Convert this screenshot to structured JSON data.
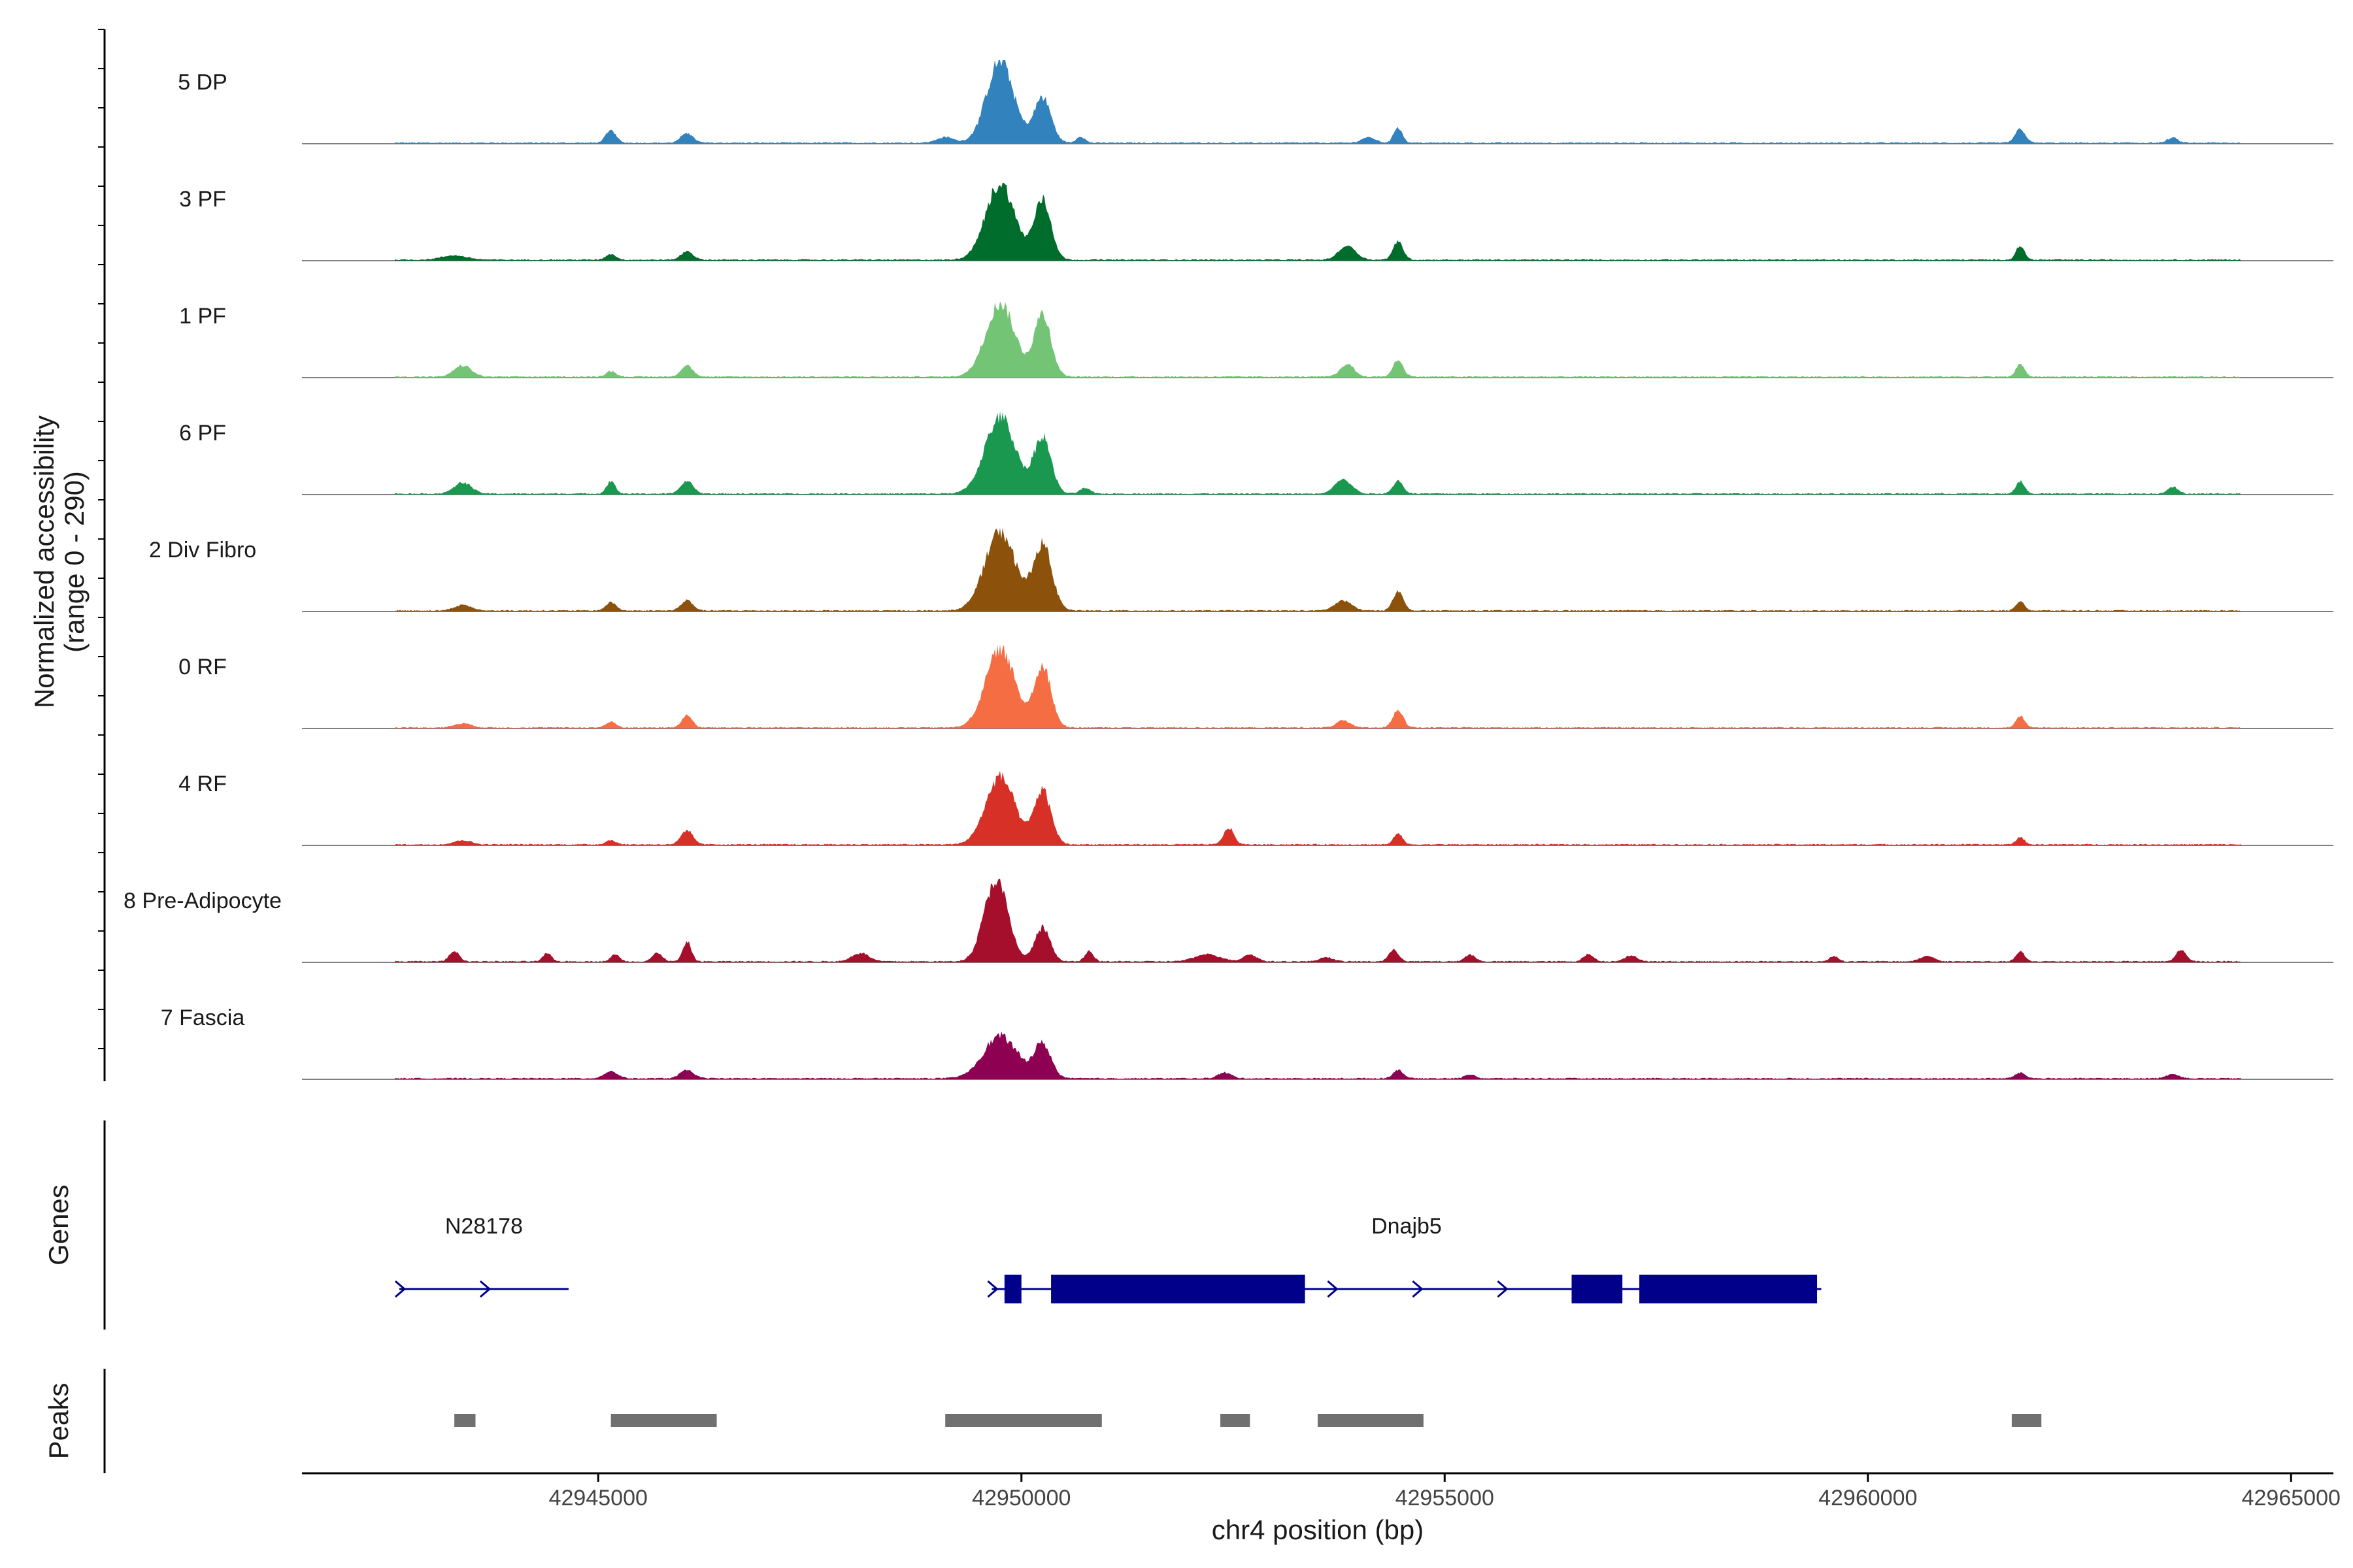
{
  "chart_data": {
    "type": "area",
    "title": "",
    "ylabel_line1": "Normalized accessibility",
    "ylabel_line2": "(range 0 - 290)",
    "y_range": [
      0,
      290
    ],
    "xlabel": "chr4 position (bp)",
    "xlim": [
      42941500,
      42965500
    ],
    "x_ticks": [
      42945000,
      42950000,
      42955000,
      42960000,
      42965000
    ],
    "x_tick_labels": [
      "42945000",
      "42950000",
      "42955000",
      "42960000",
      "42965000"
    ],
    "data_start": 42942600,
    "data_end": 42964400,
    "series": [
      {
        "name": "5 DP",
        "color": "#3182bd",
        "peaks": [
          [
            42949750,
            290,
            160
          ],
          [
            42950250,
            160,
            100
          ],
          [
            42945150,
            45,
            60
          ],
          [
            42946050,
            35,
            70
          ],
          [
            42949100,
            20,
            100
          ],
          [
            42954450,
            55,
            50
          ],
          [
            42954100,
            20,
            80
          ],
          [
            42961800,
            50,
            60
          ],
          [
            42963600,
            18,
            60
          ],
          [
            42950700,
            22,
            50
          ]
        ]
      },
      {
        "name": "3 PF",
        "color": "#006d2c",
        "peaks": [
          [
            42949750,
            270,
            170
          ],
          [
            42950250,
            210,
            100
          ],
          [
            42945150,
            20,
            60
          ],
          [
            42946050,
            30,
            70
          ],
          [
            42953850,
            50,
            100
          ],
          [
            42954450,
            65,
            60
          ],
          [
            42961800,
            50,
            50
          ],
          [
            42943300,
            15,
            150
          ]
        ]
      },
      {
        "name": "1 PF",
        "color": "#74c476",
        "peaks": [
          [
            42949750,
            260,
            170
          ],
          [
            42950250,
            220,
            100
          ],
          [
            42943400,
            40,
            100
          ],
          [
            42946050,
            40,
            70
          ],
          [
            42945150,
            20,
            60
          ],
          [
            42953850,
            45,
            80
          ],
          [
            42954450,
            60,
            60
          ],
          [
            42961800,
            45,
            50
          ]
        ]
      },
      {
        "name": "6 PF",
        "color": "#1a9850",
        "peaks": [
          [
            42949750,
            270,
            180
          ],
          [
            42950250,
            200,
            100
          ],
          [
            42943400,
            40,
            100
          ],
          [
            42945150,
            45,
            50
          ],
          [
            42946050,
            45,
            70
          ],
          [
            42953800,
            50,
            100
          ],
          [
            42954450,
            45,
            60
          ],
          [
            42961800,
            45,
            50
          ],
          [
            42963600,
            25,
            60
          ],
          [
            42950750,
            20,
            60
          ]
        ]
      },
      {
        "name": "2 Div Fibro",
        "color": "#8c510a",
        "peaks": [
          [
            42949750,
            280,
            180
          ],
          [
            42950250,
            230,
            110
          ],
          [
            42945150,
            30,
            60
          ],
          [
            42946050,
            35,
            70
          ],
          [
            42954450,
            70,
            60
          ],
          [
            42953800,
            35,
            100
          ],
          [
            42961800,
            35,
            50
          ],
          [
            42943400,
            20,
            100
          ]
        ]
      },
      {
        "name": "0 RF",
        "color": "#f46d43",
        "peaks": [
          [
            42949750,
            280,
            170
          ],
          [
            42950250,
            220,
            100
          ],
          [
            42946050,
            45,
            60
          ],
          [
            42945150,
            20,
            60
          ],
          [
            42954450,
            65,
            60
          ],
          [
            42953800,
            25,
            80
          ],
          [
            42961800,
            40,
            50
          ],
          [
            42943400,
            15,
            100
          ]
        ]
      },
      {
        "name": "4 RF",
        "color": "#d73027",
        "peaks": [
          [
            42949750,
            240,
            170
          ],
          [
            42950250,
            190,
            100
          ],
          [
            42946050,
            50,
            70
          ],
          [
            42952450,
            60,
            60
          ],
          [
            42954450,
            40,
            50
          ],
          [
            42961800,
            25,
            50
          ],
          [
            42945150,
            15,
            60
          ],
          [
            42943400,
            15,
            100
          ]
        ]
      },
      {
        "name": "8 Pre-Adipocyte",
        "color": "#a50f2c",
        "peaks": [
          [
            42949700,
            290,
            140
          ],
          [
            42950250,
            120,
            90
          ],
          [
            42946050,
            70,
            50
          ],
          [
            42943300,
            35,
            60
          ],
          [
            42944400,
            30,
            50
          ],
          [
            42945200,
            25,
            50
          ],
          [
            42945700,
            30,
            60
          ],
          [
            42950800,
            35,
            50
          ],
          [
            42948100,
            30,
            100
          ],
          [
            42952200,
            25,
            150
          ],
          [
            42952700,
            25,
            80
          ],
          [
            42954400,
            40,
            60
          ],
          [
            42953600,
            15,
            80
          ],
          [
            42955300,
            25,
            60
          ],
          [
            42956700,
            25,
            60
          ],
          [
            42957200,
            20,
            80
          ],
          [
            42961800,
            35,
            50
          ],
          [
            42963700,
            40,
            60
          ],
          [
            42959600,
            20,
            50
          ],
          [
            42960700,
            20,
            80
          ]
        ]
      },
      {
        "name": "7 Fascia",
        "color": "#8e0152",
        "peaks": [
          [
            42949750,
            150,
            200
          ],
          [
            42950250,
            120,
            100
          ],
          [
            42945150,
            25,
            80
          ],
          [
            42946050,
            30,
            80
          ],
          [
            42952400,
            20,
            80
          ],
          [
            42954450,
            30,
            60
          ],
          [
            42955300,
            15,
            60
          ],
          [
            42961800,
            20,
            60
          ],
          [
            42963600,
            15,
            80
          ]
        ]
      }
    ],
    "genes": [
      {
        "name": "N28178",
        "start": 42942650,
        "end": 42944650,
        "strand": "+",
        "exons": []
      },
      {
        "name": "Dnajb5",
        "start": 42949650,
        "end": 42959450,
        "strand": "+",
        "exons": [
          [
            42949800,
            42950000
          ],
          [
            42950350,
            42953350
          ],
          [
            42956500,
            42957100
          ],
          [
            42957300,
            42959400
          ]
        ]
      }
    ],
    "peaks_regions": [
      [
        42943300,
        42943550
      ],
      [
        42945150,
        42946400
      ],
      [
        42949100,
        42950950
      ],
      [
        42952350,
        42952700
      ],
      [
        42953500,
        42954750
      ],
      [
        42961700,
        42962050
      ]
    ],
    "colors": {
      "baseline": "#808080",
      "gene": "#00008b",
      "peak_region": "#707070",
      "axis": "#000000"
    }
  },
  "sections": {
    "genes_title": "Genes",
    "peaks_title": "Peaks"
  }
}
